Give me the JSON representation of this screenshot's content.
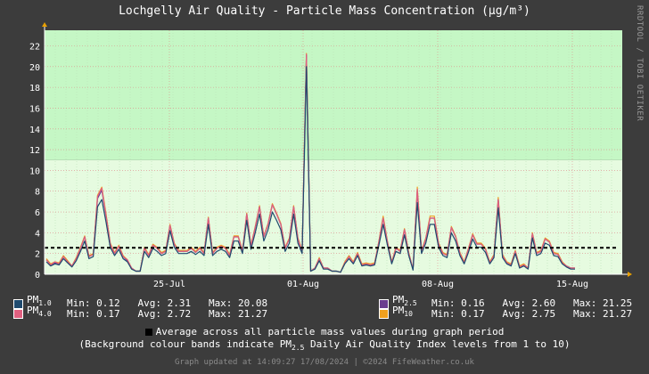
{
  "title": "Lochgelly Air Quality - Particle Mass Concentration (μg/m³)",
  "side_credit": "RRDTOOL / TOBI OETIKER",
  "chart_data": {
    "type": "line",
    "x_tick_labels": [
      "25-Jul",
      "01-Aug",
      "08-Aug",
      "15-Aug"
    ],
    "y_ticks": [
      0,
      2,
      4,
      6,
      8,
      10,
      12,
      14,
      16,
      18,
      20,
      22
    ],
    "ylim": [
      0,
      23.5
    ],
    "grid": true,
    "background_bands": [
      {
        "from": 0,
        "to": 11,
        "color": "#e6fbe0"
      },
      {
        "from": 11,
        "to": 23.5,
        "color": "#c5f7c5"
      }
    ],
    "average_line": 2.55,
    "series": [
      {
        "name": "PM1.0",
        "color": "#1f4a6e",
        "values": [
          1.2,
          0.8,
          1.0,
          0.9,
          1.5,
          1.1,
          0.7,
          1.3,
          2.2,
          3.2,
          1.5,
          1.7,
          6.5,
          7.2,
          5.0,
          2.6,
          1.8,
          2.4,
          1.5,
          1.2,
          0.5,
          0.3,
          0.3,
          2.2,
          1.6,
          2.5,
          2.2,
          1.8,
          2.0,
          4.2,
          2.6,
          2.0,
          2.0,
          2.0,
          2.2,
          1.9,
          2.2,
          1.8,
          4.8,
          1.8,
          2.2,
          2.4,
          2.2,
          1.6,
          3.2,
          3.2,
          2.0,
          5.2,
          2.4,
          4.0,
          5.8,
          3.2,
          4.3,
          6.0,
          5.2,
          4.3,
          2.2,
          3.0,
          5.8,
          3.0,
          2.0,
          20.0,
          0.3,
          0.5,
          1.3,
          0.5,
          0.5,
          0.3,
          0.3,
          0.2,
          1.0,
          1.5,
          1.0,
          1.8,
          0.8,
          0.9,
          0.8,
          0.9,
          2.8,
          4.8,
          2.8,
          1.0,
          2.2,
          2.0,
          3.8,
          1.8,
          0.4,
          6.9,
          2.0,
          3.0,
          4.8,
          4.8,
          2.6,
          1.8,
          1.6,
          4.0,
          3.2,
          1.8,
          1.0,
          2.1,
          3.4,
          2.6,
          2.6,
          2.1,
          1.0,
          1.6,
          6.4,
          1.6,
          1.0,
          0.8,
          2.0,
          0.6,
          0.8,
          0.5,
          3.5,
          1.8,
          2.0,
          3.0,
          2.8,
          1.8,
          1.7,
          1.0,
          0.7,
          0.5,
          0.5
        ]
      },
      {
        "name": "PM4.0",
        "color": "#e06080",
        "values": [
          1.4,
          0.9,
          1.2,
          1.0,
          1.7,
          1.2,
          0.8,
          1.5,
          2.5,
          3.6,
          1.7,
          1.9,
          7.5,
          8.3,
          5.6,
          2.9,
          2.0,
          2.7,
          1.7,
          1.4,
          0.6,
          0.3,
          0.3,
          2.5,
          1.8,
          2.8,
          2.5,
          2.0,
          2.2,
          4.7,
          2.9,
          2.2,
          2.2,
          2.2,
          2.5,
          2.1,
          2.5,
          2.0,
          5.4,
          2.0,
          2.5,
          2.7,
          2.5,
          1.8,
          3.6,
          3.6,
          2.2,
          5.8,
          2.7,
          4.5,
          6.5,
          3.6,
          4.8,
          6.7,
          5.8,
          4.8,
          2.5,
          3.4,
          6.5,
          3.4,
          2.2,
          21.2,
          0.3,
          0.6,
          1.5,
          0.6,
          0.6,
          0.3,
          0.3,
          0.2,
          1.1,
          1.7,
          1.1,
          2.0,
          0.9,
          1.0,
          0.9,
          1.0,
          3.1,
          5.4,
          3.1,
          1.1,
          2.5,
          2.2,
          4.3,
          2.0,
          0.5,
          8.2,
          2.2,
          3.4,
          5.4,
          5.4,
          2.9,
          2.0,
          1.8,
          4.5,
          3.6,
          2.0,
          1.1,
          2.4,
          3.8,
          2.9,
          2.9,
          2.4,
          1.1,
          1.8,
          7.2,
          1.8,
          1.1,
          0.9,
          2.2,
          0.7,
          0.9,
          0.6,
          3.9,
          2.0,
          2.2,
          3.4,
          3.1,
          2.0,
          1.9,
          1.1,
          0.8,
          0.6,
          0.6
        ]
      },
      {
        "name": "PM2.5",
        "color": "#6a3d8f",
        "values": [
          1.4,
          0.9,
          1.1,
          1.0,
          1.7,
          1.2,
          0.8,
          1.5,
          2.5,
          3.6,
          1.7,
          1.9,
          7.3,
          8.1,
          5.6,
          2.9,
          2.0,
          2.7,
          1.7,
          1.3,
          0.6,
          0.3,
          0.3,
          2.5,
          1.8,
          2.8,
          2.5,
          2.0,
          2.2,
          4.7,
          2.9,
          2.2,
          2.2,
          2.2,
          2.5,
          2.1,
          2.5,
          2.0,
          5.4,
          2.0,
          2.5,
          2.7,
          2.5,
          1.8,
          3.6,
          3.6,
          2.2,
          5.8,
          2.7,
          4.5,
          6.5,
          3.6,
          4.8,
          6.7,
          5.8,
          4.8,
          2.5,
          3.4,
          6.5,
          3.4,
          2.2,
          21.1,
          0.3,
          0.6,
          1.5,
          0.6,
          0.6,
          0.3,
          0.3,
          0.2,
          1.1,
          1.7,
          1.1,
          2.0,
          0.9,
          1.0,
          0.9,
          1.0,
          3.1,
          5.4,
          3.1,
          1.1,
          2.5,
          2.2,
          4.3,
          2.0,
          0.5,
          8.0,
          2.2,
          3.4,
          5.4,
          5.4,
          2.9,
          2.0,
          1.8,
          4.5,
          3.6,
          2.0,
          1.1,
          2.4,
          3.8,
          2.9,
          2.9,
          2.4,
          1.1,
          1.8,
          7.2,
          1.8,
          1.1,
          0.9,
          2.2,
          0.7,
          0.9,
          0.6,
          3.9,
          2.0,
          2.2,
          3.4,
          3.1,
          2.0,
          1.9,
          1.1,
          0.8,
          0.6,
          0.6
        ]
      },
      {
        "name": "PM10",
        "color": "#f0a020",
        "values": [
          1.5,
          1.0,
          1.2,
          1.1,
          1.8,
          1.3,
          0.8,
          1.6,
          2.6,
          3.7,
          1.8,
          2.0,
          7.6,
          8.4,
          5.8,
          3.0,
          2.1,
          2.8,
          1.8,
          1.4,
          0.6,
          0.3,
          0.3,
          2.6,
          1.9,
          2.9,
          2.6,
          2.1,
          2.3,
          4.8,
          3.0,
          2.3,
          2.3,
          2.3,
          2.6,
          2.2,
          2.6,
          2.1,
          5.5,
          2.1,
          2.6,
          2.8,
          2.6,
          1.9,
          3.7,
          3.7,
          2.3,
          5.9,
          2.8,
          4.6,
          6.6,
          3.7,
          4.9,
          6.8,
          5.9,
          4.9,
          2.6,
          3.5,
          6.6,
          3.5,
          2.3,
          21.27,
          0.3,
          0.6,
          1.6,
          0.6,
          0.6,
          0.3,
          0.3,
          0.2,
          1.2,
          1.8,
          1.2,
          2.1,
          1.0,
          1.1,
          1.0,
          1.1,
          3.2,
          5.6,
          3.2,
          1.2,
          2.6,
          2.3,
          4.4,
          2.1,
          0.5,
          8.4,
          2.3,
          3.5,
          5.6,
          5.6,
          3.0,
          2.1,
          1.9,
          4.6,
          3.7,
          2.1,
          1.2,
          2.5,
          3.9,
          3.0,
          3.0,
          2.5,
          1.2,
          1.9,
          7.4,
          1.9,
          1.2,
          1.0,
          2.3,
          0.8,
          1.0,
          0.6,
          4.0,
          2.1,
          2.3,
          3.5,
          3.2,
          2.1,
          2.0,
          1.2,
          0.8,
          0.6,
          0.6
        ]
      }
    ]
  },
  "legend": [
    {
      "key": "pm1",
      "base": "PM",
      "sub": "1.0",
      "color": "#1f4a6e",
      "stats": "Min: 0.12   Avg: 2.31   Max: 20.08"
    },
    {
      "key": "pm4",
      "base": "PM",
      "sub": "4.0",
      "color": "#e06080",
      "stats": "Min: 0.17   Avg: 2.72   Max: 21.27"
    },
    {
      "key": "pm25",
      "base": "PM",
      "sub": "2.5",
      "color": "#6a3d8f",
      "stats": "Min: 0.16   Avg: 2.60   Max: 21.25"
    },
    {
      "key": "pm10",
      "base": "PM",
      "sub": "10",
      "color": "#f0a020",
      "stats": "Min: 0.17   Avg: 2.75   Max: 21.27"
    }
  ],
  "avg_note": "Average across all particle mass values during graph period",
  "band_note_pre": "(Background colour bands indicate PM",
  "band_note_sub": "2.5",
  "band_note_post": " Daily Air Quality Index levels from 1 to 10)",
  "footer": "Graph updated at 14:09:27 17/08/2024 | ©2024 FifeWeather.co.uk"
}
